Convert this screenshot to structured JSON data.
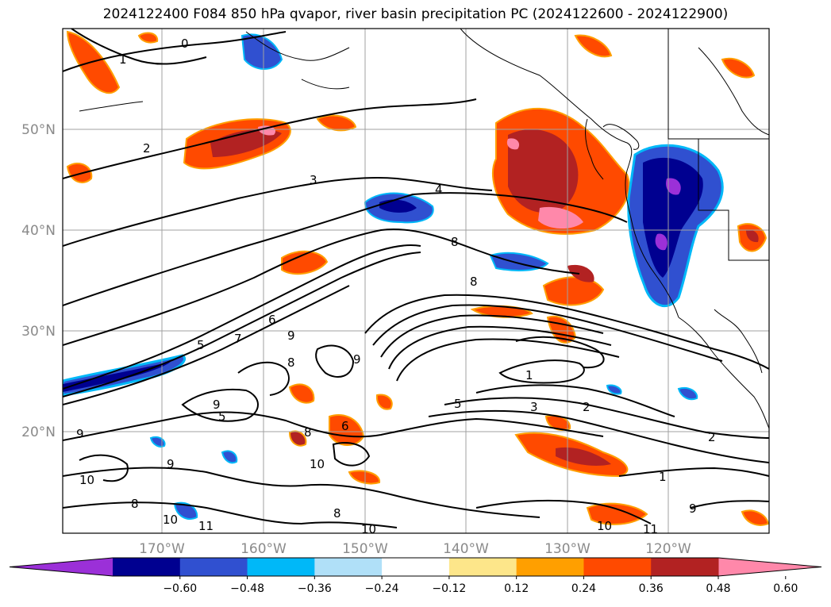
{
  "title": "2024122400 F084 850 hPa qvapor, river basin precipitation PC (2024122600 - 2024122900)",
  "lat_labels": [
    "50°N",
    "40°N",
    "30°N",
    "20°N"
  ],
  "lon_labels": [
    "170°W",
    "160°W",
    "150°W",
    "140°W",
    "130°W",
    "120°W"
  ],
  "colorbar": {
    "ticks": [
      "−0.60",
      "−0.48",
      "−0.36",
      "−0.24",
      "−0.12",
      "0.12",
      "0.24",
      "0.36",
      "0.48",
      "0.60"
    ],
    "colors": [
      "#9b30d8",
      "#000090",
      "#3050d0",
      "#00b8f8",
      "#b0e0f8",
      "#ffffff",
      "#fde68a",
      "#ff9f00",
      "#ff4a00",
      "#b22222",
      "#ff88aa"
    ]
  },
  "contour_labels": [
    "0",
    "1",
    "2",
    "3",
    "4",
    "8",
    "8",
    "9",
    "5",
    "7",
    "6",
    "8",
    "9",
    "5",
    "9",
    "8",
    "6",
    "10",
    "1",
    "5",
    "3",
    "2",
    "2",
    "1",
    "10",
    "9",
    "8",
    "9",
    "10",
    "8",
    "10",
    "11",
    "11",
    "9",
    "10"
  ]
}
